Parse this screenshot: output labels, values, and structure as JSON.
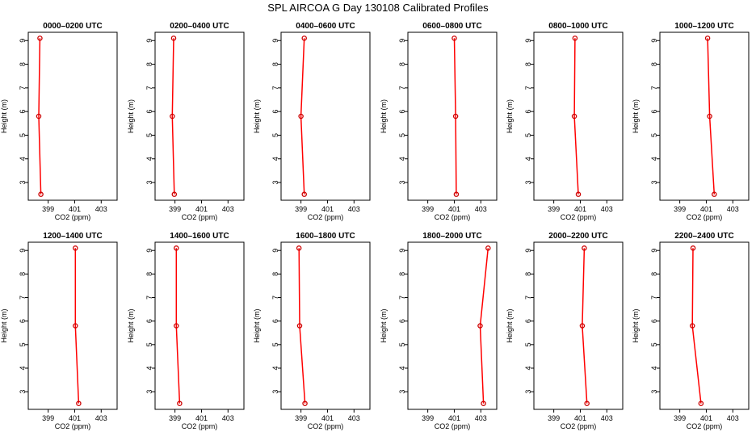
{
  "figure": {
    "title": "SPL AIRCOA G  Day 130108  Calibrated Profiles"
  },
  "colors": {
    "line": "#ff0000",
    "marker": "#cc0000",
    "axis": "#000000"
  },
  "chart_data": [
    {
      "type": "line",
      "title": "0000–0200 UTC",
      "xlabel": "CO2 (ppm)",
      "ylabel": "Height (m)",
      "xlim": [
        397.5,
        404.2
      ],
      "ylim": [
        2.25,
        9.35
      ],
      "xticks": [
        399,
        401,
        403
      ],
      "yticks": [
        3,
        4,
        5,
        6,
        7,
        8,
        9
      ],
      "series": [
        {
          "x": [
            398.38,
            398.29,
            398.45
          ],
          "y": [
            9.1,
            5.8,
            2.5
          ]
        }
      ]
    },
    {
      "type": "line",
      "title": "0200–0400 UTC",
      "xlabel": "CO2 (ppm)",
      "ylabel": "Height (m)",
      "xlim": [
        397.5,
        404.2
      ],
      "ylim": [
        2.25,
        9.35
      ],
      "xticks": [
        399,
        401,
        403
      ],
      "yticks": [
        3,
        4,
        5,
        6,
        7,
        8,
        9
      ],
      "series": [
        {
          "x": [
            398.9,
            398.8,
            398.95
          ],
          "y": [
            9.1,
            5.8,
            2.5
          ]
        }
      ]
    },
    {
      "type": "line",
      "title": "0400–0600 UTC",
      "xlabel": "CO2 (ppm)",
      "ylabel": "Height (m)",
      "xlim": [
        397.5,
        404.2
      ],
      "ylim": [
        2.25,
        9.35
      ],
      "xticks": [
        399,
        401,
        403
      ],
      "yticks": [
        3,
        4,
        5,
        6,
        7,
        8,
        9
      ],
      "series": [
        {
          "x": [
            399.25,
            399.0,
            399.25
          ],
          "y": [
            9.1,
            5.8,
            2.5
          ]
        }
      ]
    },
    {
      "type": "line",
      "title": "0600–0800 UTC",
      "xlabel": "CO2 (ppm)",
      "ylabel": "Height (m)",
      "xlim": [
        397.5,
        404.2
      ],
      "ylim": [
        2.25,
        9.35
      ],
      "xticks": [
        399,
        401,
        403
      ],
      "yticks": [
        3,
        4,
        5,
        6,
        7,
        8,
        9
      ],
      "series": [
        {
          "x": [
            401.0,
            401.1,
            401.15
          ],
          "y": [
            9.1,
            5.8,
            2.5
          ]
        }
      ]
    },
    {
      "type": "line",
      "title": "0800–1000 UTC",
      "xlabel": "CO2 (ppm)",
      "ylabel": "Height (m)",
      "xlim": [
        397.5,
        404.2
      ],
      "ylim": [
        2.25,
        9.35
      ],
      "xticks": [
        399,
        401,
        403
      ],
      "yticks": [
        3,
        4,
        5,
        6,
        7,
        8,
        9
      ],
      "series": [
        {
          "x": [
            400.6,
            400.55,
            400.85
          ],
          "y": [
            9.1,
            5.8,
            2.5
          ]
        }
      ]
    },
    {
      "type": "line",
      "title": "1000–1200 UTC",
      "xlabel": "CO2 (ppm)",
      "ylabel": "Height (m)",
      "xlim": [
        397.5,
        404.2
      ],
      "ylim": [
        2.25,
        9.35
      ],
      "xticks": [
        399,
        401,
        403
      ],
      "yticks": [
        3,
        4,
        5,
        6,
        7,
        8,
        9
      ],
      "series": [
        {
          "x": [
            401.1,
            401.25,
            401.6
          ],
          "y": [
            9.1,
            5.8,
            2.5
          ]
        }
      ]
    },
    {
      "type": "line",
      "title": "1200–1400 UTC",
      "xlabel": "CO2 (ppm)",
      "ylabel": "Height (m)",
      "xlim": [
        397.5,
        404.2
      ],
      "ylim": [
        2.25,
        9.35
      ],
      "xticks": [
        399,
        401,
        403
      ],
      "yticks": [
        3,
        4,
        5,
        6,
        7,
        8,
        9
      ],
      "series": [
        {
          "x": [
            401.05,
            401.05,
            401.3
          ],
          "y": [
            9.1,
            5.8,
            2.5
          ]
        }
      ]
    },
    {
      "type": "line",
      "title": "1400–1600 UTC",
      "xlabel": "CO2 (ppm)",
      "ylabel": "Height (m)",
      "xlim": [
        397.5,
        404.2
      ],
      "ylim": [
        2.25,
        9.35
      ],
      "xticks": [
        399,
        401,
        403
      ],
      "yticks": [
        3,
        4,
        5,
        6,
        7,
        8,
        9
      ],
      "series": [
        {
          "x": [
            399.1,
            399.1,
            399.35
          ],
          "y": [
            9.1,
            5.8,
            2.5
          ]
        }
      ]
    },
    {
      "type": "line",
      "title": "1600–1800 UTC",
      "xlabel": "CO2 (ppm)",
      "ylabel": "Height (m)",
      "xlim": [
        397.5,
        404.2
      ],
      "ylim": [
        2.25,
        9.35
      ],
      "xticks": [
        399,
        401,
        403
      ],
      "yticks": [
        3,
        4,
        5,
        6,
        7,
        8,
        9
      ],
      "series": [
        {
          "x": [
            398.85,
            398.9,
            399.3
          ],
          "y": [
            9.1,
            5.8,
            2.5
          ]
        }
      ]
    },
    {
      "type": "line",
      "title": "1800–2000 UTC",
      "xlabel": "CO2 (ppm)",
      "ylabel": "Height (m)",
      "xlim": [
        397.5,
        404.2
      ],
      "ylim": [
        2.25,
        9.35
      ],
      "xticks": [
        399,
        401,
        403
      ],
      "yticks": [
        3,
        4,
        5,
        6,
        7,
        8,
        9
      ],
      "series": [
        {
          "x": [
            403.55,
            402.95,
            403.2
          ],
          "y": [
            9.1,
            5.8,
            2.5
          ]
        }
      ]
    },
    {
      "type": "line",
      "title": "2000–2200 UTC",
      "xlabel": "CO2 (ppm)",
      "ylabel": "Height (m)",
      "xlim": [
        397.5,
        404.2
      ],
      "ylim": [
        2.25,
        9.35
      ],
      "xticks": [
        399,
        401,
        403
      ],
      "yticks": [
        3,
        4,
        5,
        6,
        7,
        8,
        9
      ],
      "series": [
        {
          "x": [
            401.3,
            401.15,
            401.5
          ],
          "y": [
            9.1,
            5.8,
            2.5
          ]
        }
      ]
    },
    {
      "type": "line",
      "title": "2200–2400 UTC",
      "xlabel": "CO2 (ppm)",
      "ylabel": "Height (m)",
      "xlim": [
        397.5,
        404.2
      ],
      "ylim": [
        2.25,
        9.35
      ],
      "xticks": [
        399,
        401,
        403
      ],
      "yticks": [
        3,
        4,
        5,
        6,
        7,
        8,
        9
      ],
      "series": [
        {
          "x": [
            400.0,
            399.95,
            400.6
          ],
          "y": [
            9.1,
            5.8,
            2.5
          ]
        }
      ]
    }
  ]
}
